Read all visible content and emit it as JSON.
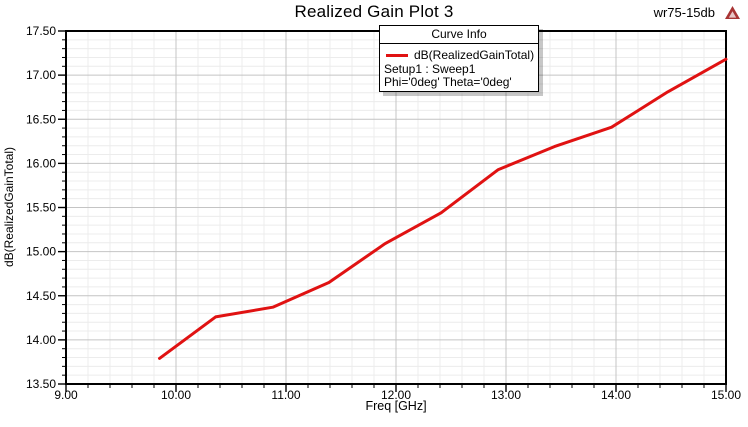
{
  "header": {
    "title": "Realized Gain Plot 3",
    "project_label": "wr75-15db"
  },
  "legend": {
    "title": "Curve Info",
    "entries": [
      {
        "swatch_color": "#e01212",
        "label": "dB(RealizedGainTotal)"
      }
    ],
    "info_lines": [
      "Setup1 : Sweep1",
      "Phi='0deg' Theta='0deg'"
    ]
  },
  "chart_data": {
    "type": "line",
    "title": "Realized Gain Plot 3",
    "xlabel": "Freq [GHz]",
    "ylabel": "dB(RealizedGainTotal)",
    "xlim": [
      9,
      15
    ],
    "ylim": [
      13.5,
      17.5
    ],
    "x_major_ticks": [
      9,
      10,
      11,
      12,
      13,
      14,
      15
    ],
    "x_tick_labels": [
      "9.00",
      "10.00",
      "11.00",
      "12.00",
      "13.00",
      "14.00",
      "15.00"
    ],
    "x_minor_step": 0.2,
    "y_major_ticks": [
      13.5,
      14,
      14.5,
      15,
      15.5,
      16,
      16.5,
      17,
      17.5
    ],
    "y_tick_labels": [
      "13.50",
      "14.00",
      "14.50",
      "15.00",
      "15.50",
      "16.00",
      "16.50",
      "17.00",
      "17.50"
    ],
    "y_minor_step": 0.1,
    "grid": true,
    "legend_position": "top-center",
    "series": [
      {
        "name": "dB(RealizedGainTotal)",
        "color": "#e01212",
        "x": [
          9.85,
          10.36,
          10.88,
          11.39,
          11.9,
          12.41,
          12.93,
          13.44,
          13.96,
          14.47,
          15.0
        ],
        "y": [
          13.79,
          14.26,
          14.37,
          14.65,
          15.09,
          15.44,
          15.93,
          16.19,
          16.41,
          16.81,
          17.18
        ]
      }
    ]
  },
  "colors": {
    "curve": "#e01212",
    "frame": "#000000",
    "grid_major": "#c4c4c4",
    "grid_minor": "#ececec",
    "background": "#ffffff",
    "logo": "#a83434",
    "logo_inner": "#e8c6c6"
  }
}
